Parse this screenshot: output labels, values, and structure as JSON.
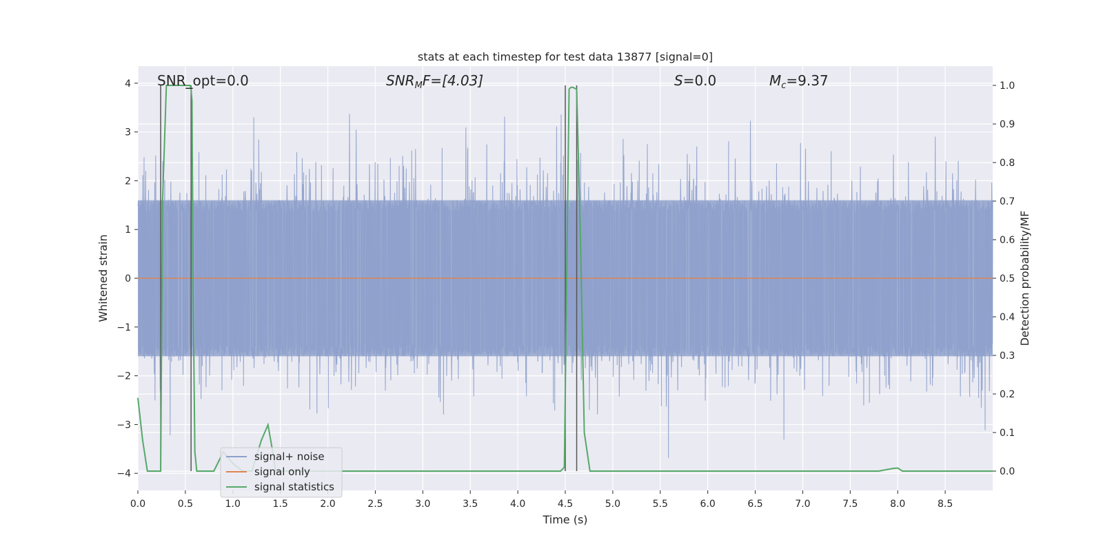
{
  "chart_data": {
    "type": "line",
    "title": "stats at each timestep for test data 13877 [signal=0]",
    "xlabel": "Time (s)",
    "ylabel": "Whitened strain",
    "ylabel_right": "Detection probability/MF",
    "xlim": [
      0.0,
      9.0
    ],
    "ylim": [
      -4.35,
      4.35
    ],
    "ylim_right": [
      -0.05,
      1.05
    ],
    "x_ticks": [
      "0.0",
      "0.5",
      "1.0",
      "1.5",
      "2.0",
      "2.5",
      "3.0",
      "3.5",
      "4.0",
      "4.5",
      "5.0",
      "5.5",
      "6.0",
      "6.5",
      "7.0",
      "7.5",
      "8.0",
      "8.5"
    ],
    "x_tick_values": [
      0.0,
      0.5,
      1.0,
      1.5,
      2.0,
      2.5,
      3.0,
      3.5,
      4.0,
      4.5,
      5.0,
      5.5,
      6.0,
      6.5,
      7.0,
      7.5,
      8.0,
      8.5
    ],
    "y_ticks": [
      "4",
      "3",
      "2",
      "1",
      "0",
      "−1",
      "−2",
      "−3",
      "−4"
    ],
    "y_tick_values": [
      4,
      3,
      2,
      1,
      0,
      -1,
      -2,
      -3,
      -4
    ],
    "y_ticks_right": [
      "1.0",
      "0.9",
      "0.8",
      "0.7",
      "0.6",
      "0.5",
      "0.4",
      "0.3",
      "0.2",
      "0.1",
      "0.0"
    ],
    "y_tick_values_right": [
      1.0,
      0.9,
      0.8,
      0.7,
      0.6,
      0.5,
      0.4,
      0.3,
      0.2,
      0.1,
      0.0
    ],
    "grid": true,
    "legend_position": "bottom-left",
    "annotations": {
      "snr_opt": "SNR_opt=0.0",
      "snr_mf_main": "SNR",
      "snr_mf_sub": "M",
      "snr_mf_rest": "F=[4.03]",
      "s_main": "S",
      "s_rest": "=0.0",
      "mc_main": "M",
      "mc_sub": "c",
      "mc_rest": "=9.37"
    },
    "series": [
      {
        "name": "signal+ noise",
        "color": "#8da0cb",
        "noise": {
          "seed": 13877,
          "samples": 3600,
          "core_amplitude": 1.6,
          "peak_max": 3.4,
          "trough_min": -4.0
        }
      },
      {
        "name": "signal only",
        "color": "#dd8452",
        "value": 0.0
      },
      {
        "name": "signal statistics",
        "color": "#55a868",
        "x": [
          0.0,
          0.05,
          0.1,
          0.2,
          0.24,
          0.25,
          0.26,
          0.3,
          0.55,
          0.56,
          0.57,
          0.58,
          0.6,
          0.62,
          0.7,
          0.8,
          0.9,
          1.0,
          1.1,
          1.2,
          1.3,
          1.37,
          1.42,
          1.45,
          1.5,
          4.45,
          4.49,
          4.52,
          4.54,
          4.56,
          4.58,
          4.62,
          4.66,
          4.7,
          4.76,
          4.8,
          7.8,
          7.95,
          8.0,
          8.05,
          8.1,
          8.5,
          9.0
        ],
        "y": [
          0.19,
          0.08,
          0.0,
          0.0,
          0.0,
          0.35,
          0.7,
          1.0,
          1.0,
          0.99,
          0.96,
          0.5,
          0.05,
          0.0,
          0.0,
          0.0,
          0.05,
          0.02,
          0.0,
          0.0,
          0.08,
          0.12,
          0.05,
          0.0,
          0.0,
          0.0,
          0.01,
          0.6,
          0.99,
          0.995,
          0.995,
          0.99,
          0.6,
          0.1,
          0.0,
          0.0,
          0.0,
          0.007,
          0.008,
          0.0,
          0.0,
          0.0,
          0.0
        ]
      }
    ],
    "vertical_markers": [
      0.24,
      0.56,
      4.5,
      4.62
    ]
  }
}
